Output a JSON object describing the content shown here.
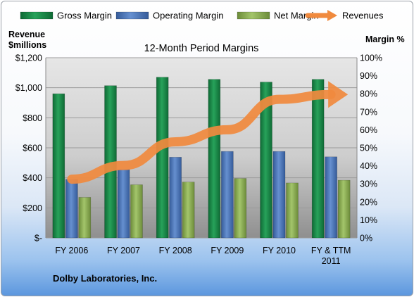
{
  "company": "Dolby Laboratories, Inc.",
  "colors": {
    "gross": "#1f8b4c",
    "operating": "#4f76b8",
    "net": "#8db054",
    "revenue": "#f08a3e"
  },
  "chart_data": {
    "type": "bar",
    "title": "12-Month Period Margins",
    "ylabel": [
      "Revenue",
      "$millions"
    ],
    "y2label": "Margin %",
    "categories": [
      [
        "FY 2006"
      ],
      [
        "FY 2007"
      ],
      [
        "FY 2008"
      ],
      [
        "FY 2009"
      ],
      [
        "FY 2010"
      ],
      [
        "FY & TTM",
        "2011"
      ]
    ],
    "yticks": [
      "$-",
      "$200",
      "$400",
      "$600",
      "$800",
      "$1,000",
      "$1,200"
    ],
    "y2ticks": [
      "0%",
      "10%",
      "20%",
      "30%",
      "40%",
      "50%",
      "60%",
      "70%",
      "80%",
      "90%",
      "100%"
    ],
    "ylim": [
      0,
      1200
    ],
    "y2lim": [
      0,
      100
    ],
    "grid": true,
    "legend_position": "top",
    "series": [
      {
        "name": "Gross Margin",
        "axis": "margin",
        "kind": "bar",
        "color_key": "gross",
        "values": [
          80.0,
          84.5,
          89.2,
          88.0,
          86.5,
          88.0
        ]
      },
      {
        "name": "Operating Margin",
        "axis": "margin",
        "kind": "bar",
        "color_key": "operating",
        "values": [
          32.5,
          38.0,
          44.8,
          48.0,
          48.0,
          45.0
        ]
      },
      {
        "name": "Net Margin",
        "axis": "margin",
        "kind": "bar",
        "color_key": "net",
        "values": [
          22.5,
          29.5,
          31.0,
          33.0,
          30.5,
          32.0
        ]
      },
      {
        "name": "Revenues",
        "axis": "revenue",
        "kind": "line",
        "color_key": "revenue",
        "values": [
          391,
          482,
          640,
          720,
          923,
          955
        ]
      }
    ]
  }
}
